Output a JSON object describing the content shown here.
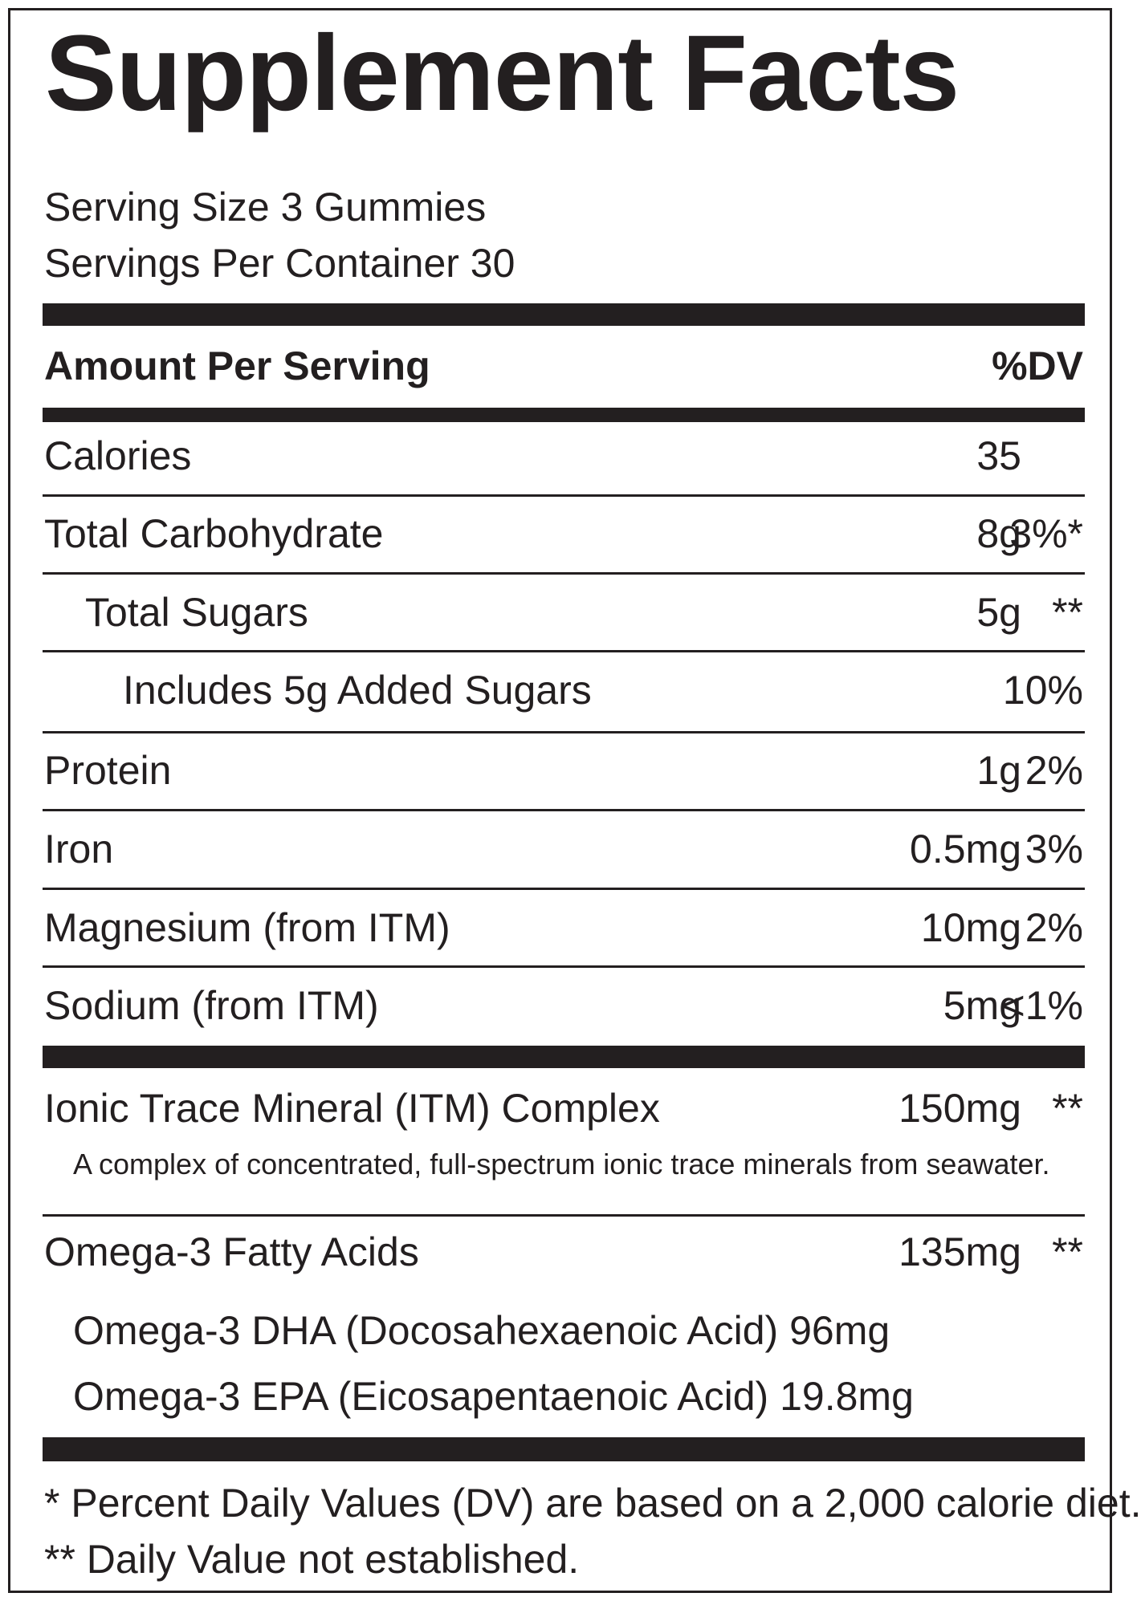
{
  "label": {
    "title": "Supplement Facts",
    "serving_size": "Serving Size 3 Gummies",
    "servings_per_container": "Servings Per Container 30",
    "amount_per_serving": "Amount Per Serving",
    "dv_header": "%DV",
    "nutrients": [
      {
        "name": "Calories",
        "amount": "35",
        "dv": ""
      },
      {
        "name": "Total Carbohydrate",
        "amount": "8g",
        "dv": "3%*"
      },
      {
        "name": "Total Sugars",
        "amount": "5g",
        "dv": "**"
      },
      {
        "name": "Includes 5g Added Sugars",
        "amount": "",
        "dv": "10%"
      },
      {
        "name": "Protein",
        "amount": "1g",
        "dv": "2%"
      },
      {
        "name": "Iron",
        "amount": "0.5mg",
        "dv": "3%"
      },
      {
        "name": "Magnesium (from ITM)",
        "amount": "10mg",
        "dv": "2%"
      },
      {
        "name": "Sodium (from ITM)",
        "amount": "5mg",
        "dv": "<1%"
      }
    ],
    "itm": {
      "name": "Ionic Trace Mineral (ITM) Complex",
      "amount": "150mg",
      "dv": "**",
      "description": "A complex of concentrated, full-spectrum ionic trace minerals from seawater."
    },
    "omega": {
      "name": "Omega-3 Fatty Acids",
      "amount": "135mg",
      "dv": "**",
      "sub1": "Omega-3 DHA (Docosahexaenoic Acid) 96mg",
      "sub2": "Omega-3 EPA (Eicosapentaenoic Acid) 19.8mg"
    },
    "footnote1": "* Percent Daily Values (DV) are based on a 2,000 calorie diet.",
    "footnote2": "** Daily Value not established."
  }
}
